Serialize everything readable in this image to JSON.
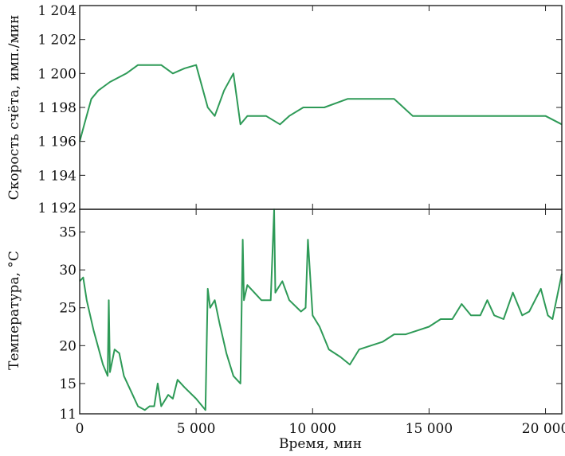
{
  "chart_data": [
    {
      "type": "line",
      "ylabel": "Скорость счёта, имп./мин",
      "xlim": [
        0,
        20700
      ],
      "ylim": [
        1192,
        1204
      ],
      "yticks": [
        1192,
        1194,
        1196,
        1198,
        1200,
        1202,
        1204
      ],
      "ytick_labels": [
        "1 192",
        "1 194",
        "1 196",
        "1 198",
        "1 200",
        "1 202",
        "1 204"
      ],
      "line_color": "#2e9a57",
      "series": [
        {
          "x": [
            0,
            200,
            500,
            800,
            1300,
            2000,
            2500,
            3000,
            3500,
            4000,
            4500,
            5000,
            5500,
            5800,
            6200,
            6600,
            6900,
            7200,
            8000,
            8600,
            9000,
            9600,
            10500,
            11500,
            12500,
            13500,
            14300,
            15000,
            16000,
            17000,
            18000,
            19000,
            20000,
            20700
          ],
          "values": [
            1196,
            1197,
            1198.5,
            1199,
            1199.5,
            1200,
            1200.5,
            1200.5,
            1200.5,
            1200,
            1200.3,
            1200.5,
            1198,
            1197.5,
            1199,
            1200,
            1197,
            1197.5,
            1197.5,
            1197,
            1197.5,
            1198,
            1198,
            1198.5,
            1198.5,
            1198.5,
            1197.5,
            1197.5,
            1197.5,
            1197.5,
            1197.5,
            1197.5,
            1197.5,
            1197
          ]
        }
      ]
    },
    {
      "type": "line",
      "xlabel": "Время, мин",
      "ylabel": "Температура, °С",
      "xlim": [
        0,
        20700
      ],
      "ylim": [
        11,
        38
      ],
      "xticks": [
        0,
        5000,
        10000,
        15000,
        20000
      ],
      "xtick_labels": [
        "0",
        "5 000",
        "10 000",
        "15 000",
        "20 000"
      ],
      "yticks": [
        11,
        15,
        20,
        25,
        30,
        35
      ],
      "ytick_labels": [
        "11",
        "15",
        "20",
        "25",
        "30",
        "35"
      ],
      "line_color": "#2e9a57",
      "series": [
        {
          "x": [
            0,
            150,
            300,
            600,
            1000,
            1200,
            1250,
            1300,
            1500,
            1700,
            1900,
            2200,
            2500,
            2800,
            3000,
            3200,
            3350,
            3500,
            3800,
            4000,
            4200,
            4500,
            5000,
            5400,
            5500,
            5600,
            5800,
            6000,
            6300,
            6600,
            6900,
            7000,
            7050,
            7200,
            7500,
            7800,
            8200,
            8350,
            8400,
            8500,
            8700,
            9000,
            9500,
            9700,
            9800,
            10000,
            10300,
            10700,
            11200,
            11600,
            12000,
            12500,
            13000,
            13500,
            14000,
            14500,
            15000,
            15500,
            16000,
            16400,
            16800,
            17200,
            17500,
            17800,
            18200,
            18600,
            19000,
            19300,
            19800,
            20100,
            20300,
            20700
          ],
          "values": [
            28.5,
            29,
            26,
            22,
            17.5,
            16,
            26,
            16.5,
            19.5,
            19,
            16,
            14,
            12,
            11.5,
            12,
            12,
            15,
            12,
            13.5,
            13,
            15.5,
            14.5,
            13,
            11.5,
            27.5,
            25,
            26,
            23,
            19,
            16,
            15,
            34,
            26,
            28,
            27,
            26,
            26,
            38,
            27,
            27.5,
            28.5,
            26,
            24.5,
            25,
            34,
            24,
            22.5,
            19.5,
            18.5,
            17.5,
            19.5,
            20,
            20.5,
            21.5,
            21.5,
            22,
            22.5,
            23.5,
            23.5,
            25.5,
            24,
            24,
            26,
            24,
            23.5,
            27,
            24,
            24.5,
            27.5,
            24,
            23.5,
            29.5
          ]
        }
      ]
    }
  ]
}
